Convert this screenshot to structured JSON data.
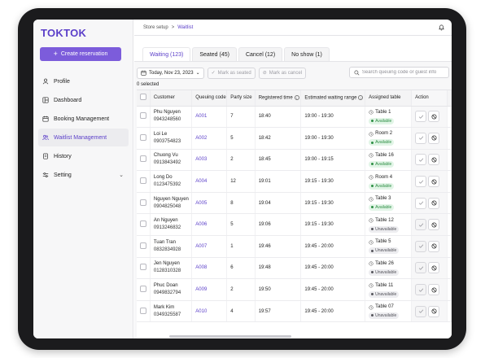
{
  "app": {
    "logo": "TOKTOK"
  },
  "sidebar": {
    "create_button": "Create reservation",
    "items": [
      {
        "label": "Profile",
        "icon": "user-icon",
        "active": false
      },
      {
        "label": "Dashboard",
        "icon": "dashboard-icon",
        "active": false
      },
      {
        "label": "Booking Management",
        "icon": "calendar-icon",
        "active": false
      },
      {
        "label": "Waitlist Management",
        "icon": "users-icon",
        "active": true
      },
      {
        "label": "History",
        "icon": "document-icon",
        "active": false
      },
      {
        "label": "Setting",
        "icon": "sliders-icon",
        "active": false,
        "has_chevron": true
      }
    ]
  },
  "header": {
    "breadcrumb": {
      "parent": "Store setup",
      "separator": ">",
      "current": "Waitlist"
    },
    "bell_icon": "bell-icon"
  },
  "tabs": [
    {
      "label": "Waiting (123)",
      "active": true
    },
    {
      "label": "Seated (45)",
      "active": false
    },
    {
      "label": "Cancel (12)",
      "active": false
    },
    {
      "label": "No show (1)",
      "active": false
    }
  ],
  "filters": {
    "date": "Today, Nov 23, 2023",
    "mark_seated": "Mark as seated",
    "mark_cancel": "Mark as cancel",
    "search_placeholder": "Search queuing code or guest info"
  },
  "selected_text": "0 selected",
  "table": {
    "columns": [
      "Customer",
      "Queuing code",
      "Party size",
      "Registered time",
      "Estimated waiting range",
      "Assigned table",
      "Action"
    ],
    "rows": [
      {
        "name": "Phu Nguyen",
        "phone": "0943248560",
        "code": "A001",
        "party": "7",
        "registered": "18:40",
        "range": "19:00 - 19:30",
        "table": "Table 1",
        "status": "Available",
        "action_enabled": true
      },
      {
        "name": "Loi Le",
        "phone": "0903754823",
        "code": "A002",
        "party": "5",
        "registered": "18:42",
        "range": "19:00 - 19:30",
        "table": "Room 2",
        "status": "Available",
        "action_enabled": true
      },
      {
        "name": "Chuong Vu",
        "phone": "0913843492",
        "code": "A003",
        "party": "2",
        "registered": "18:45",
        "range": "19:00 - 19:15",
        "table": "Table 16",
        "status": "Available",
        "action_enabled": true
      },
      {
        "name": "Long Do",
        "phone": "0123475392",
        "code": "A004",
        "party": "12",
        "registered": "19:01",
        "range": "19:15 - 19:30",
        "table": "Room 4",
        "status": "Available",
        "action_enabled": true
      },
      {
        "name": "Nguyen Nguyen",
        "phone": "0904825048",
        "code": "A005",
        "party": "8",
        "registered": "19:04",
        "range": "19:15 - 19:30",
        "table": "Table 3",
        "status": "Available",
        "action_enabled": true
      },
      {
        "name": "An Nguyen",
        "phone": "0913246832",
        "code": "A006",
        "party": "5",
        "registered": "19:06",
        "range": "19:15 - 19:30",
        "table": "Table 12",
        "status": "Unavailable",
        "action_enabled": false
      },
      {
        "name": "Tuan Tran",
        "phone": "0832834928",
        "code": "A007",
        "party": "1",
        "registered": "19:46",
        "range": "19:45 - 20:00",
        "table": "Table 5",
        "status": "Unavailable",
        "action_enabled": false
      },
      {
        "name": "Jen Nguyen",
        "phone": "0128310328",
        "code": "A008",
        "party": "6",
        "registered": "19:48",
        "range": "19:45 - 20:00",
        "table": "Table 26",
        "status": "Unavailable",
        "action_enabled": false
      },
      {
        "name": "Phuc Doan",
        "phone": "0949832794",
        "code": "A009",
        "party": "2",
        "registered": "19:50",
        "range": "19:45 - 20:00",
        "table": "Table 11",
        "status": "Unavailable",
        "action_enabled": false
      },
      {
        "name": "Mark Kim",
        "phone": "0349325587",
        "code": "A010",
        "party": "4",
        "registered": "19:57",
        "range": "19:45 - 20:00",
        "table": "Table 07",
        "status": "Unavailable",
        "action_enabled": false
      }
    ]
  },
  "colors": {
    "brand": "#5b3fc9",
    "button": "#7c5cdb",
    "available": "#2f8f46"
  }
}
